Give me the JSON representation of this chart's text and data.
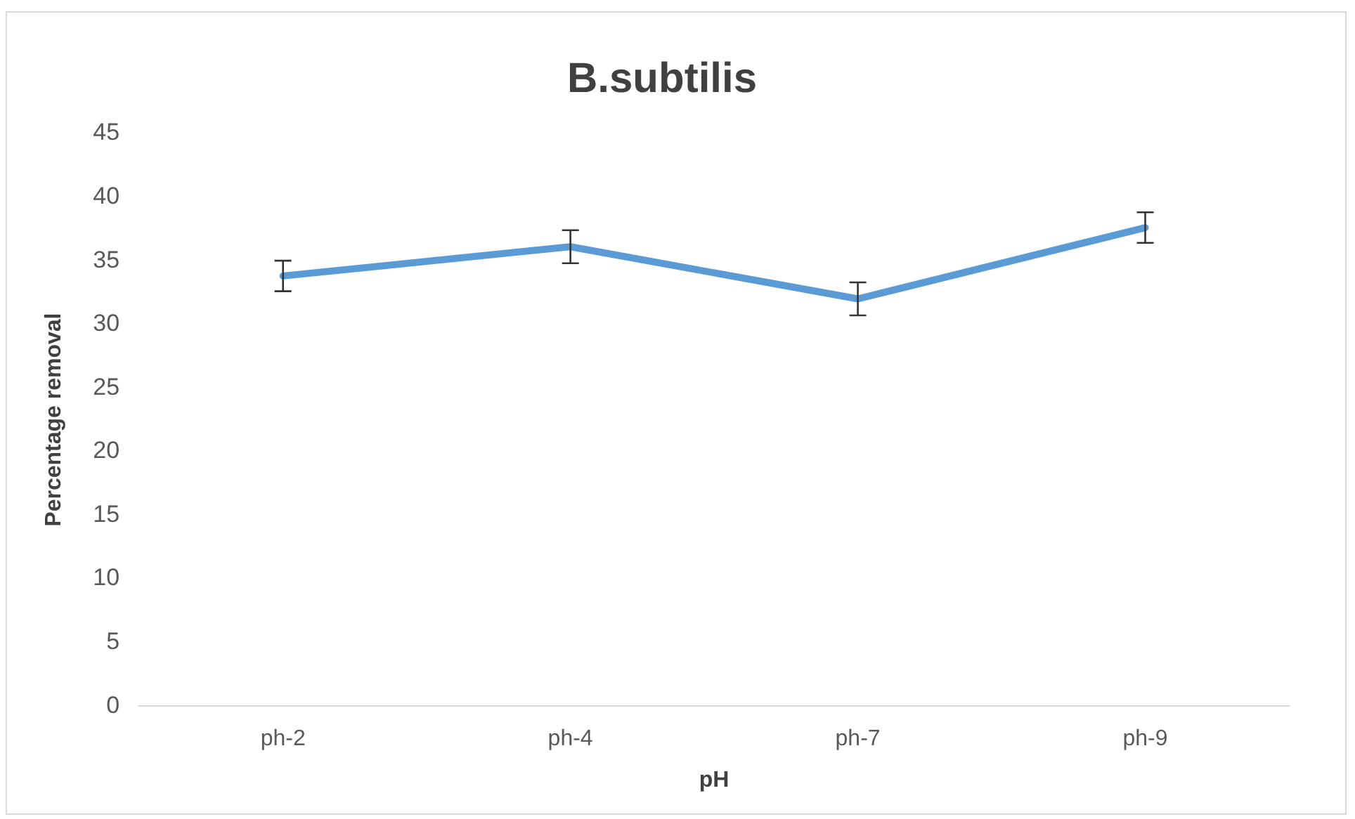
{
  "chart_data": {
    "type": "line",
    "title": "B.subtilis",
    "xlabel": "pH",
    "ylabel": "Percentage removal",
    "categories": [
      "ph-2",
      "ph-4",
      "ph-7",
      "ph-9"
    ],
    "series": [
      {
        "color": "#5b9bd5",
        "values": [
          33.8,
          36.1,
          32.0,
          37.6
        ],
        "errors": [
          1.2,
          1.3,
          1.3,
          1.2
        ]
      }
    ],
    "ylim": [
      0,
      45
    ],
    "yticks": [
      0,
      5,
      10,
      15,
      20,
      25,
      30,
      35,
      40,
      45
    ],
    "grid": false,
    "legend": false,
    "marker": "none",
    "line_style": "solid"
  }
}
